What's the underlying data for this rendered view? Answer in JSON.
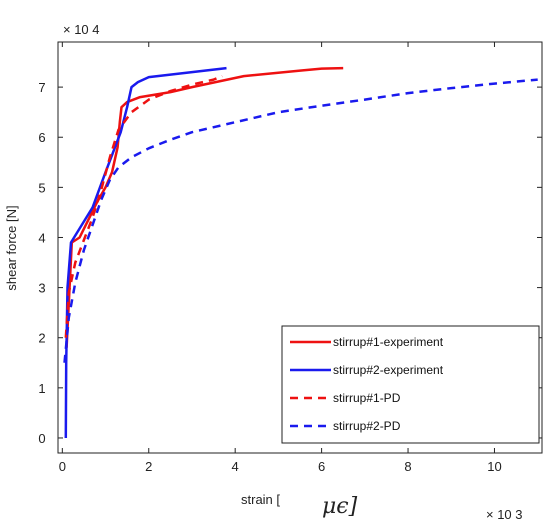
{
  "chart_data": {
    "type": "line",
    "xlabel": "strain [",
    "xlabel_symbol": "μϵ]",
    "ylabel": "shear force [N]",
    "x_exponent": "× 10 3",
    "y_exponent": "× 10 4",
    "xlim": [
      -0.1,
      11.1
    ],
    "ylim": [
      -0.3,
      7.9
    ],
    "xticks": [
      0,
      2,
      4,
      6,
      8,
      10
    ],
    "yticks": [
      0,
      1,
      2,
      3,
      4,
      5,
      6,
      7
    ],
    "grid": false,
    "legend_position": "bottom-right",
    "series": [
      {
        "name": "stirrup#1-experiment",
        "color": "#ee1111",
        "dashed": false,
        "x": [
          0.1,
          0.22,
          0.4,
          0.6,
          0.8,
          1.0,
          1.15,
          1.28,
          1.33,
          1.37,
          1.5,
          1.8,
          2.5,
          3.0,
          4.2,
          5.5,
          6.0,
          6.5
        ],
        "y": [
          1.8,
          3.9,
          4.0,
          4.35,
          4.7,
          5.0,
          5.3,
          5.8,
          6.3,
          6.6,
          6.7,
          6.8,
          6.9,
          7.0,
          7.22,
          7.33,
          7.37,
          7.38
        ]
      },
      {
        "name": "stirrup#2-experiment",
        "color": "#1a1aee",
        "dashed": false,
        "x": [
          0.08,
          0.09,
          0.12,
          0.2,
          0.7,
          1.0,
          1.35,
          1.5,
          1.6,
          1.75,
          2.0,
          3.0,
          3.8
        ],
        "y": [
          0.0,
          1.5,
          3.0,
          3.9,
          4.6,
          5.3,
          6.1,
          6.6,
          7.0,
          7.1,
          7.2,
          7.3,
          7.38
        ]
      },
      {
        "name": "stirrup#1-PD",
        "color": "#ee1111",
        "dashed": true,
        "x": [
          0.08,
          0.15,
          0.3,
          0.5,
          0.7,
          0.9,
          1.1,
          1.3,
          1.6,
          2.0,
          2.5,
          3.0,
          3.5,
          3.7
        ],
        "y": [
          2.0,
          2.9,
          3.5,
          3.95,
          4.4,
          4.95,
          5.6,
          6.15,
          6.5,
          6.75,
          6.92,
          7.05,
          7.15,
          7.22
        ]
      },
      {
        "name": "stirrup#2-PD",
        "color": "#1a1aee",
        "dashed": true,
        "x": [
          0.05,
          0.15,
          0.3,
          0.5,
          0.7,
          0.9,
          1.1,
          1.3,
          1.6,
          2.0,
          2.5,
          3.0,
          4.0,
          5.0,
          6.0,
          7.0,
          8.0,
          9.0,
          10.0,
          11.0
        ],
        "y": [
          1.5,
          2.4,
          3.1,
          3.75,
          4.25,
          4.75,
          5.15,
          5.4,
          5.6,
          5.78,
          5.95,
          6.1,
          6.3,
          6.5,
          6.63,
          6.75,
          6.88,
          6.98,
          7.07,
          7.15
        ]
      }
    ]
  }
}
